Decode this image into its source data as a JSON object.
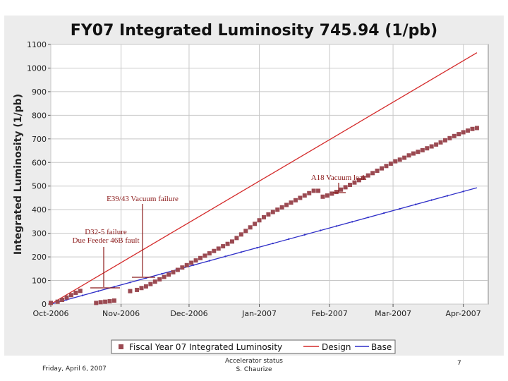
{
  "chart_data": {
    "type": "line",
    "title": "FY07 Integrated Luminosity 745.94 (1/pb)",
    "ylabel": "Integrated Luminosity (1/pb)",
    "xlabel": "",
    "ylim": [
      0,
      1100
    ],
    "yticks": [
      0,
      100,
      200,
      300,
      400,
      500,
      600,
      700,
      800,
      900,
      1000,
      1100
    ],
    "xlim": [
      0,
      193
    ],
    "xticks": [
      {
        "label": "Oct-2006",
        "day": 0
      },
      {
        "label": "Nov-2006",
        "day": 31
      },
      {
        "label": "Dec-2006",
        "day": 61
      },
      {
        "label": "Jan-2007",
        "day": 92
      },
      {
        "label": "Feb-2007",
        "day": 123
      },
      {
        "label": "Mar-2007",
        "day": 151
      },
      {
        "label": "Apr-2007",
        "day": 182
      }
    ],
    "grid": true,
    "legend_position": "bottom",
    "series": [
      {
        "name": "Fiscal Year 07 Integrated Luminosity",
        "style": "markers",
        "color": "#9b4a52",
        "x": [
          0,
          3,
          5,
          7,
          9,
          11,
          13,
          20,
          22,
          24,
          26,
          28,
          35,
          38,
          40,
          42,
          44,
          46,
          48,
          50,
          52,
          54,
          56,
          58,
          60,
          62,
          64,
          66,
          68,
          70,
          72,
          74,
          76,
          78,
          80,
          82,
          84,
          86,
          88,
          90,
          92,
          94,
          96,
          98,
          100,
          102,
          104,
          106,
          108,
          110,
          112,
          114,
          116,
          118,
          120,
          122,
          124,
          126,
          128,
          130,
          132,
          134,
          136,
          138,
          140,
          142,
          144,
          146,
          148,
          150,
          152,
          154,
          156,
          158,
          160,
          162,
          164,
          166,
          168,
          170,
          172,
          174,
          176,
          178,
          180,
          182,
          184,
          186,
          188
        ],
        "y": [
          5,
          10,
          18,
          28,
          38,
          48,
          56,
          5,
          8,
          10,
          12,
          15,
          55,
          60,
          68,
          75,
          85,
          95,
          105,
          115,
          125,
          135,
          145,
          155,
          165,
          175,
          185,
          195,
          205,
          215,
          225,
          235,
          245,
          255,
          265,
          280,
          295,
          310,
          325,
          340,
          355,
          368,
          380,
          390,
          400,
          410,
          420,
          430,
          440,
          450,
          460,
          470,
          480,
          480,
          455,
          460,
          468,
          475,
          485,
          495,
          505,
          515,
          525,
          535,
          545,
          555,
          565,
          575,
          585,
          595,
          605,
          612,
          620,
          630,
          638,
          645,
          652,
          660,
          668,
          676,
          685,
          694,
          703,
          712,
          720,
          728,
          735,
          742,
          746
        ]
      },
      {
        "name": "Design",
        "style": "line",
        "color": "#d42a2a",
        "x": [
          0,
          188
        ],
        "y": [
          0,
          1065
        ]
      },
      {
        "name": "Base",
        "style": "line",
        "color": "#2f2fc8",
        "x": [
          0,
          188
        ],
        "y": [
          0,
          493
        ]
      }
    ],
    "annotations": [
      {
        "text": "A18 Vacuum leak",
        "anchor_day": 124,
        "anchor_value": 470,
        "lines": [
          "A18 Vacuum leak"
        ]
      },
      {
        "text": "E39/43 Vacuum failure",
        "lines": [
          "E39/43 Vacuum failure"
        ]
      },
      {
        "text": "D32-5 failure Due Feeder 46B fault",
        "lines": [
          "D32-5 failure",
          "Due Feeder 46B fault"
        ]
      }
    ]
  },
  "footer": {
    "date": "Friday, April 6, 2007",
    "center_line1": "Accelerator status",
    "center_line2": "S. Chaurize",
    "page": "7"
  },
  "colors": {
    "design": "#d42a2a",
    "base": "#2f2fc8",
    "marker": "#9b4a52",
    "annotation": "#8b1a1a"
  }
}
